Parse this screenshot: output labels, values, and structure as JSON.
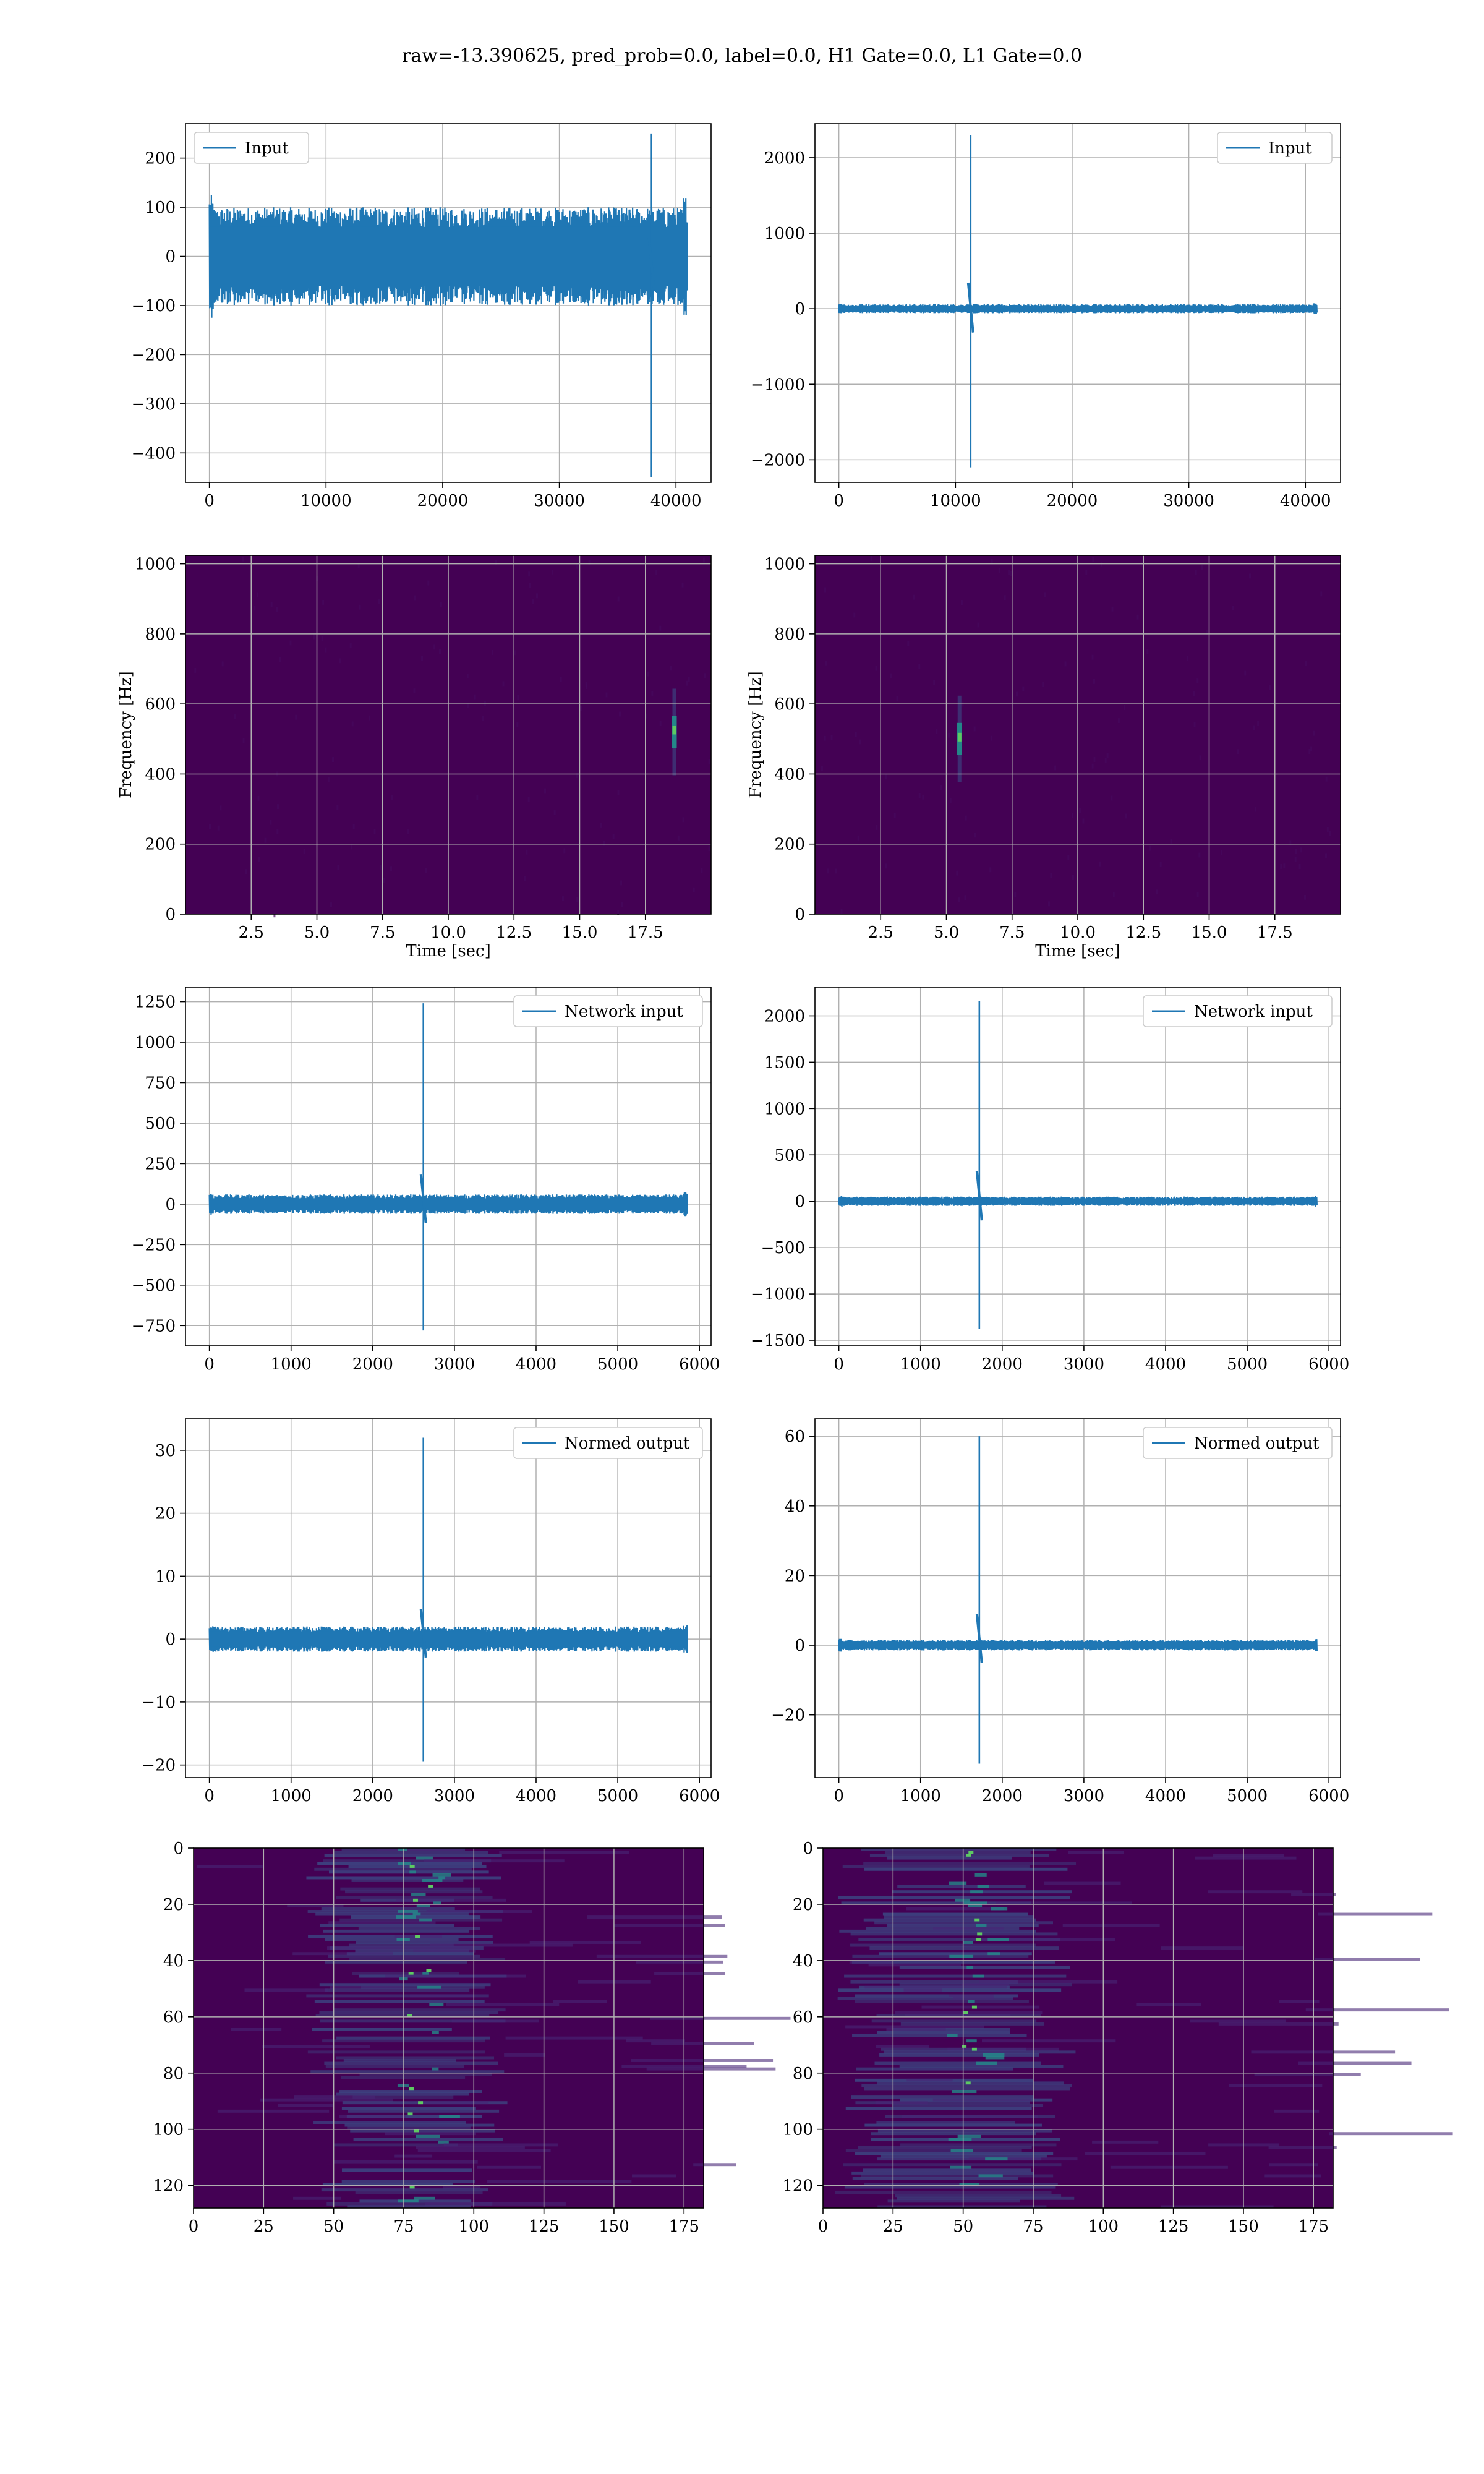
{
  "figure_title": "raw=-13.390625, pred_prob=0.0, label=0.0, H1 Gate=0.0, L1 Gate=0.0",
  "colors": {
    "line": "#1f77b4",
    "grid": "#b0b0b0",
    "spec_bg": "#440154",
    "spec_mid": "#3b528b",
    "spec_hi": "#21918c",
    "spec_peak": "#5ec962"
  },
  "chart_data": [
    {
      "type": "line",
      "panel": "row1-left",
      "legend": "Input",
      "legend_loc": "upper left",
      "x_range": [
        0,
        40960
      ],
      "ylim": [
        -460,
        270
      ],
      "xticks": [
        "0",
        "10000",
        "20000",
        "30000",
        "40000"
      ],
      "xtick_values": [
        0,
        10000,
        20000,
        30000,
        40000
      ],
      "yticks": [
        "200",
        "100",
        "0",
        "−100",
        "−200",
        "−300",
        "−400"
      ],
      "ytick_values": [
        200,
        100,
        0,
        -100,
        -200,
        -300,
        -400
      ],
      "noise_band": [
        -100,
        100
      ],
      "spike": {
        "x": 37900,
        "min": -450,
        "max": 250
      },
      "grid": true
    },
    {
      "type": "line",
      "panel": "row1-right",
      "legend": "Input",
      "legend_loc": "upper right",
      "x_range": [
        0,
        40960
      ],
      "ylim": [
        -2300,
        2450
      ],
      "xticks": [
        "0",
        "10000",
        "20000",
        "30000",
        "40000"
      ],
      "xtick_values": [
        0,
        10000,
        20000,
        30000,
        40000
      ],
      "yticks": [
        "2000",
        "1000",
        "0",
        "−1000",
        "−2000"
      ],
      "ytick_values": [
        2000,
        1000,
        0,
        -1000,
        -2000
      ],
      "noise_band": [
        -60,
        60
      ],
      "spike": {
        "x": 11300,
        "min": -2100,
        "max": 2300
      },
      "grid": true
    },
    {
      "type": "heatmap",
      "panel": "row2-left",
      "xlabel": "Time [sec]",
      "ylabel": "Frequency [Hz]",
      "xlim": [
        0,
        20
      ],
      "ylim": [
        0,
        1024
      ],
      "xticks": [
        "2.5",
        "5.0",
        "7.5",
        "10.0",
        "12.5",
        "15.0",
        "17.5"
      ],
      "xtick_values": [
        2.5,
        5,
        7.5,
        10,
        12.5,
        15,
        17.5
      ],
      "yticks": [
        "1000",
        "800",
        "600",
        "400",
        "200",
        "0"
      ],
      "ytick_values": [
        1000,
        800,
        600,
        400,
        200,
        0
      ],
      "hotspot": {
        "t": 18.6,
        "f": 520
      },
      "grid": true
    },
    {
      "type": "heatmap",
      "panel": "row2-right",
      "xlabel": "Time [sec]",
      "ylabel": "Frequency [Hz]",
      "xlim": [
        0,
        20
      ],
      "ylim": [
        0,
        1024
      ],
      "xticks": [
        "2.5",
        "5.0",
        "7.5",
        "10.0",
        "12.5",
        "15.0",
        "17.5"
      ],
      "xtick_values": [
        2.5,
        5,
        7.5,
        10,
        12.5,
        15,
        17.5
      ],
      "yticks": [
        "1000",
        "800",
        "600",
        "400",
        "200",
        "0"
      ],
      "ytick_values": [
        1000,
        800,
        600,
        400,
        200,
        0
      ],
      "hotspot": {
        "t": 5.5,
        "f": 500
      },
      "grid": true
    },
    {
      "type": "line",
      "panel": "row3-left",
      "legend": "Network input",
      "legend_loc": "upper right",
      "x_range": [
        0,
        5850
      ],
      "ylim": [
        -875,
        1340
      ],
      "xticks": [
        "0",
        "1000",
        "2000",
        "3000",
        "4000",
        "5000",
        "6000"
      ],
      "xtick_values": [
        0,
        1000,
        2000,
        3000,
        4000,
        5000,
        6000
      ],
      "yticks": [
        "1250",
        "1000",
        "750",
        "500",
        "250",
        "0",
        "−250",
        "−500",
        "−750"
      ],
      "ytick_values": [
        1250,
        1000,
        750,
        500,
        250,
        0,
        -250,
        -500,
        -750
      ],
      "noise_band": [
        -60,
        60
      ],
      "spike": {
        "x": 2620,
        "min": -780,
        "max": 1240
      },
      "grid": true
    },
    {
      "type": "line",
      "panel": "row3-right",
      "legend": "Network input",
      "legend_loc": "upper right",
      "x_range": [
        0,
        5850
      ],
      "ylim": [
        -1560,
        2310
      ],
      "xticks": [
        "0",
        "1000",
        "2000",
        "3000",
        "4000",
        "5000",
        "6000"
      ],
      "xtick_values": [
        0,
        1000,
        2000,
        3000,
        4000,
        5000,
        6000
      ],
      "yticks": [
        "2000",
        "1500",
        "1000",
        "500",
        "0",
        "−500",
        "−1000",
        "−1500"
      ],
      "ytick_values": [
        2000,
        1500,
        1000,
        500,
        0,
        -500,
        -1000,
        -1500
      ],
      "noise_band": [
        -50,
        50
      ],
      "spike": {
        "x": 1720,
        "min": -1380,
        "max": 2160
      },
      "grid": true
    },
    {
      "type": "line",
      "panel": "row4-left",
      "legend": "Normed output",
      "legend_loc": "upper right",
      "x_range": [
        0,
        5850
      ],
      "ylim": [
        -22,
        35
      ],
      "xticks": [
        "0",
        "1000",
        "2000",
        "3000",
        "4000",
        "5000",
        "6000"
      ],
      "xtick_values": [
        0,
        1000,
        2000,
        3000,
        4000,
        5000,
        6000
      ],
      "yticks": [
        "30",
        "20",
        "10",
        "0",
        "−10",
        "−20"
      ],
      "ytick_values": [
        30,
        20,
        10,
        0,
        -10,
        -20
      ],
      "noise_band": [
        -2,
        2
      ],
      "spike": {
        "x": 2620,
        "min": -19.5,
        "max": 32
      },
      "grid": true
    },
    {
      "type": "line",
      "panel": "row4-right",
      "legend": "Normed output",
      "legend_loc": "upper right",
      "x_range": [
        0,
        5850
      ],
      "ylim": [
        -38,
        65
      ],
      "xticks": [
        "0",
        "1000",
        "2000",
        "3000",
        "4000",
        "5000",
        "6000"
      ],
      "xtick_values": [
        0,
        1000,
        2000,
        3000,
        4000,
        5000,
        6000
      ],
      "yticks": [
        "60",
        "40",
        "20",
        "0",
        "−20"
      ],
      "ytick_values": [
        60,
        40,
        20,
        0,
        -20
      ],
      "noise_band": [
        -1.5,
        1.5
      ],
      "spike": {
        "x": 1720,
        "min": -34,
        "max": 60
      },
      "grid": true
    },
    {
      "type": "heatmap",
      "panel": "row5-left",
      "xlim": [
        0,
        182
      ],
      "ylim": [
        128,
        0
      ],
      "xticks": [
        "0",
        "25",
        "50",
        "75",
        "100",
        "125",
        "150",
        "175"
      ],
      "xtick_values": [
        0,
        25,
        50,
        75,
        100,
        125,
        150,
        175
      ],
      "yticks": [
        "0",
        "20",
        "40",
        "60",
        "80",
        "100",
        "120"
      ],
      "ytick_values": [
        0,
        20,
        40,
        60,
        80,
        100,
        120
      ],
      "activity_center_x": 80,
      "activity_width": 20,
      "grid": true
    },
    {
      "type": "heatmap",
      "panel": "row5-right",
      "xlim": [
        0,
        182
      ],
      "ylim": [
        128,
        0
      ],
      "xticks": [
        "0",
        "25",
        "50",
        "75",
        "100",
        "125",
        "150",
        "175"
      ],
      "xtick_values": [
        0,
        25,
        50,
        75,
        100,
        125,
        150,
        175
      ],
      "yticks": [
        "0",
        "20",
        "40",
        "60",
        "80",
        "100",
        "120"
      ],
      "ytick_values": [
        0,
        20,
        40,
        60,
        80,
        100,
        120
      ],
      "activity_center_x": 52,
      "activity_width": 24,
      "grid": true
    }
  ]
}
